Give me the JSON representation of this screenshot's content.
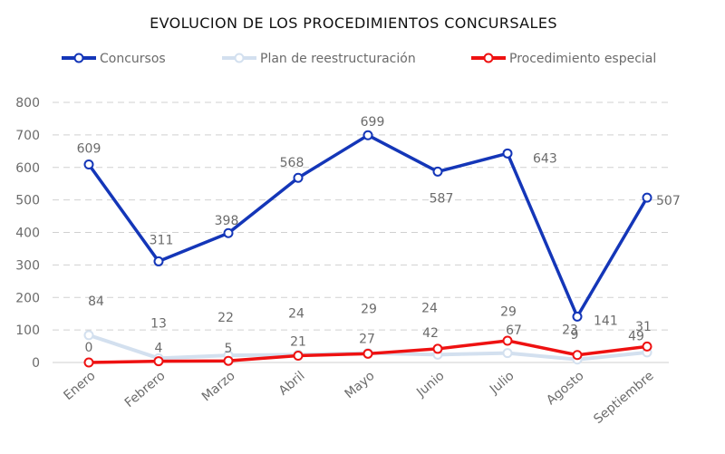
{
  "chart_data": {
    "type": "line",
    "title": "EVOLUCION DE LOS PROCEDIMIENTOS CONCURSALES",
    "categories": [
      "Enero",
      "Febrero",
      "Marzo",
      "Abril",
      "Mayo",
      "Junio",
      "Julio",
      "Agosto",
      "Septiembre"
    ],
    "ylim": [
      0,
      800
    ],
    "yticks": [
      0,
      100,
      200,
      300,
      400,
      500,
      600,
      700,
      800
    ],
    "grid": true,
    "legend_position": "top",
    "series": [
      {
        "name": "Concursos",
        "color": "#1436b8",
        "values": [
          609,
          311,
          398,
          568,
          699,
          587,
          643,
          141,
          507
        ]
      },
      {
        "name": "Plan de reestructuración",
        "color": "#d3e0ef",
        "values": [
          84,
          13,
          22,
          24,
          29,
          24,
          29,
          9,
          31
        ]
      },
      {
        "name": "Procedimiento especial",
        "color": "#ee1111",
        "values": [
          0,
          4,
          5,
          21,
          27,
          42,
          67,
          23,
          49
        ]
      }
    ]
  }
}
